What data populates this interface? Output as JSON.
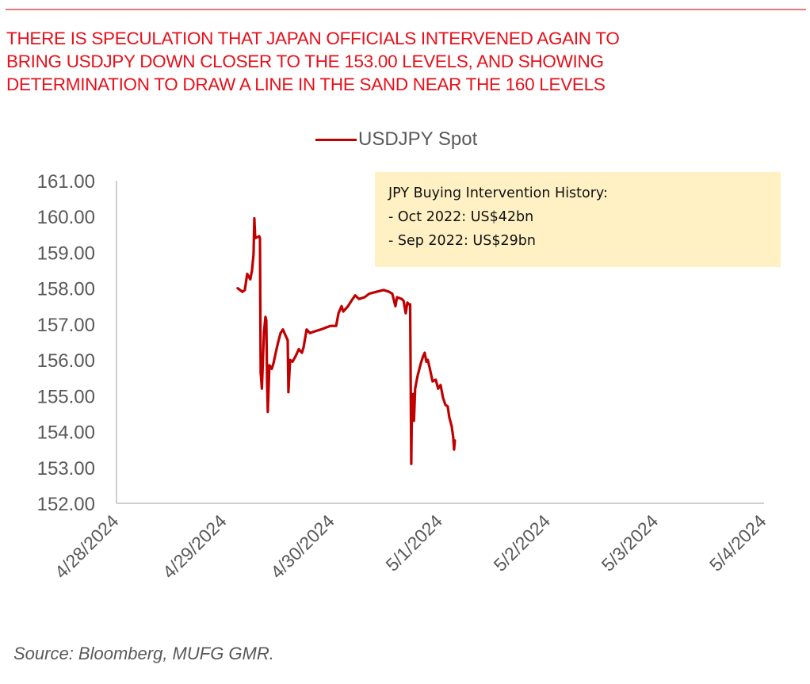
{
  "header": {
    "headline_lines": [
      "THERE IS SPECULATION THAT JAPAN OFFICIALS INTERVENED AGAIN TO",
      "BRING USDJPY DOWN CLOSER TO THE 153.00 LEVELS, AND SHOWING",
      "DETERMINATION TO DRAW A LINE IN THE SAND NEAR THE 160 LEVELS"
    ]
  },
  "annotation": {
    "title": "JPY Buying Intervention History:",
    "items": [
      "- Oct 2022: US$42bn",
      "- Sep 2022: US$29bn"
    ]
  },
  "footer": {
    "source": "Source: Bloomberg, MUFG GMR."
  },
  "colors": {
    "line": "#c00000",
    "headline": "#e8101a",
    "annotation_fill": "#fff1c4",
    "axis": "#bfbfbf",
    "text": "#595959"
  },
  "chart_data": {
    "type": "line",
    "title": "",
    "xlabel": "",
    "ylabel": "",
    "legend": {
      "position": "top-center",
      "entries": [
        "USDJPY Spot"
      ]
    },
    "x_unit": "days since 4/28/2024",
    "xlim": [
      0,
      6
    ],
    "ylim": [
      152,
      161
    ],
    "grid": false,
    "x_ticks": [
      {
        "x": 0,
        "label": "4/28/2024"
      },
      {
        "x": 1,
        "label": "4/29/2024"
      },
      {
        "x": 2,
        "label": "4/30/2024"
      },
      {
        "x": 3,
        "label": "5/1/2024"
      },
      {
        "x": 4,
        "label": "5/2/2024"
      },
      {
        "x": 5,
        "label": "5/3/2024"
      },
      {
        "x": 6,
        "label": "5/4/2024"
      }
    ],
    "y_ticks": [
      {
        "y": 161,
        "label": "161.00"
      },
      {
        "y": 160,
        "label": "160.00"
      },
      {
        "y": 159,
        "label": "159.00"
      },
      {
        "y": 158,
        "label": "158.00"
      },
      {
        "y": 157,
        "label": "157.00"
      },
      {
        "y": 156,
        "label": "156.00"
      },
      {
        "y": 155,
        "label": "155.00"
      },
      {
        "y": 154,
        "label": "154.00"
      },
      {
        "y": 153,
        "label": "153.00"
      },
      {
        "y": 152,
        "label": "152.00"
      }
    ],
    "series": [
      {
        "name": "USDJPY Spot",
        "points": [
          [
            1.123,
            158.0
          ],
          [
            1.145,
            157.95
          ],
          [
            1.167,
            157.9
          ],
          [
            1.189,
            157.95
          ],
          [
            1.211,
            158.4
          ],
          [
            1.24,
            158.25
          ],
          [
            1.256,
            158.5
          ],
          [
            1.27,
            158.95
          ],
          [
            1.277,
            159.95
          ],
          [
            1.285,
            159.4
          ],
          [
            1.322,
            159.45
          ],
          [
            1.329,
            159.4
          ],
          [
            1.336,
            155.65
          ],
          [
            1.347,
            155.2
          ],
          [
            1.366,
            156.75
          ],
          [
            1.38,
            157.2
          ],
          [
            1.388,
            157.1
          ],
          [
            1.395,
            155.4
          ],
          [
            1.402,
            154.55
          ],
          [
            1.417,
            155.85
          ],
          [
            1.439,
            155.75
          ],
          [
            1.454,
            155.9
          ],
          [
            1.483,
            156.3
          ],
          [
            1.498,
            156.5
          ],
          [
            1.52,
            156.75
          ],
          [
            1.542,
            156.85
          ],
          [
            1.571,
            156.65
          ],
          [
            1.586,
            156.55
          ],
          [
            1.593,
            155.1
          ],
          [
            1.608,
            156.0
          ],
          [
            1.63,
            155.95
          ],
          [
            1.659,
            156.1
          ],
          [
            1.689,
            156.3
          ],
          [
            1.718,
            156.2
          ],
          [
            1.733,
            156.35
          ],
          [
            1.762,
            156.85
          ],
          [
            1.791,
            156.75
          ],
          [
            1.842,
            156.8
          ],
          [
            1.894,
            156.85
          ],
          [
            1.938,
            156.9
          ],
          [
            1.982,
            156.95
          ],
          [
            2.035,
            156.95
          ],
          [
            2.057,
            157.3
          ],
          [
            2.086,
            157.5
          ],
          [
            2.101,
            157.35
          ],
          [
            2.145,
            157.5
          ],
          [
            2.177,
            157.65
          ],
          [
            2.211,
            157.8
          ],
          [
            2.247,
            157.7
          ],
          [
            2.299,
            157.75
          ],
          [
            2.343,
            157.85
          ],
          [
            2.408,
            157.9
          ],
          [
            2.474,
            157.95
          ],
          [
            2.526,
            157.9
          ],
          [
            2.555,
            157.85
          ],
          [
            2.584,
            157.5
          ],
          [
            2.599,
            157.75
          ],
          [
            2.643,
            157.7
          ],
          [
            2.66,
            157.65
          ],
          [
            2.68,
            157.3
          ],
          [
            2.695,
            157.6
          ],
          [
            2.71,
            157.55
          ],
          [
            2.721,
            157.55
          ],
          [
            2.731,
            153.1
          ],
          [
            2.738,
            154.9
          ],
          [
            2.749,
            155.05
          ],
          [
            2.756,
            154.3
          ],
          [
            2.767,
            155.2
          ],
          [
            2.789,
            155.55
          ],
          [
            2.819,
            155.9
          ],
          [
            2.841,
            156.1
          ],
          [
            2.856,
            156.2
          ],
          [
            2.871,
            155.95
          ],
          [
            2.885,
            156.0
          ],
          [
            2.9,
            155.8
          ],
          [
            2.929,
            155.4
          ],
          [
            2.958,
            155.45
          ],
          [
            2.98,
            155.2
          ],
          [
            3.003,
            155.3
          ],
          [
            3.025,
            154.95
          ],
          [
            3.047,
            154.75
          ],
          [
            3.069,
            154.7
          ],
          [
            3.084,
            154.4
          ],
          [
            3.106,
            154.15
          ],
          [
            3.12,
            153.85
          ],
          [
            3.128,
            153.5
          ],
          [
            3.135,
            153.75
          ]
        ]
      }
    ]
  }
}
